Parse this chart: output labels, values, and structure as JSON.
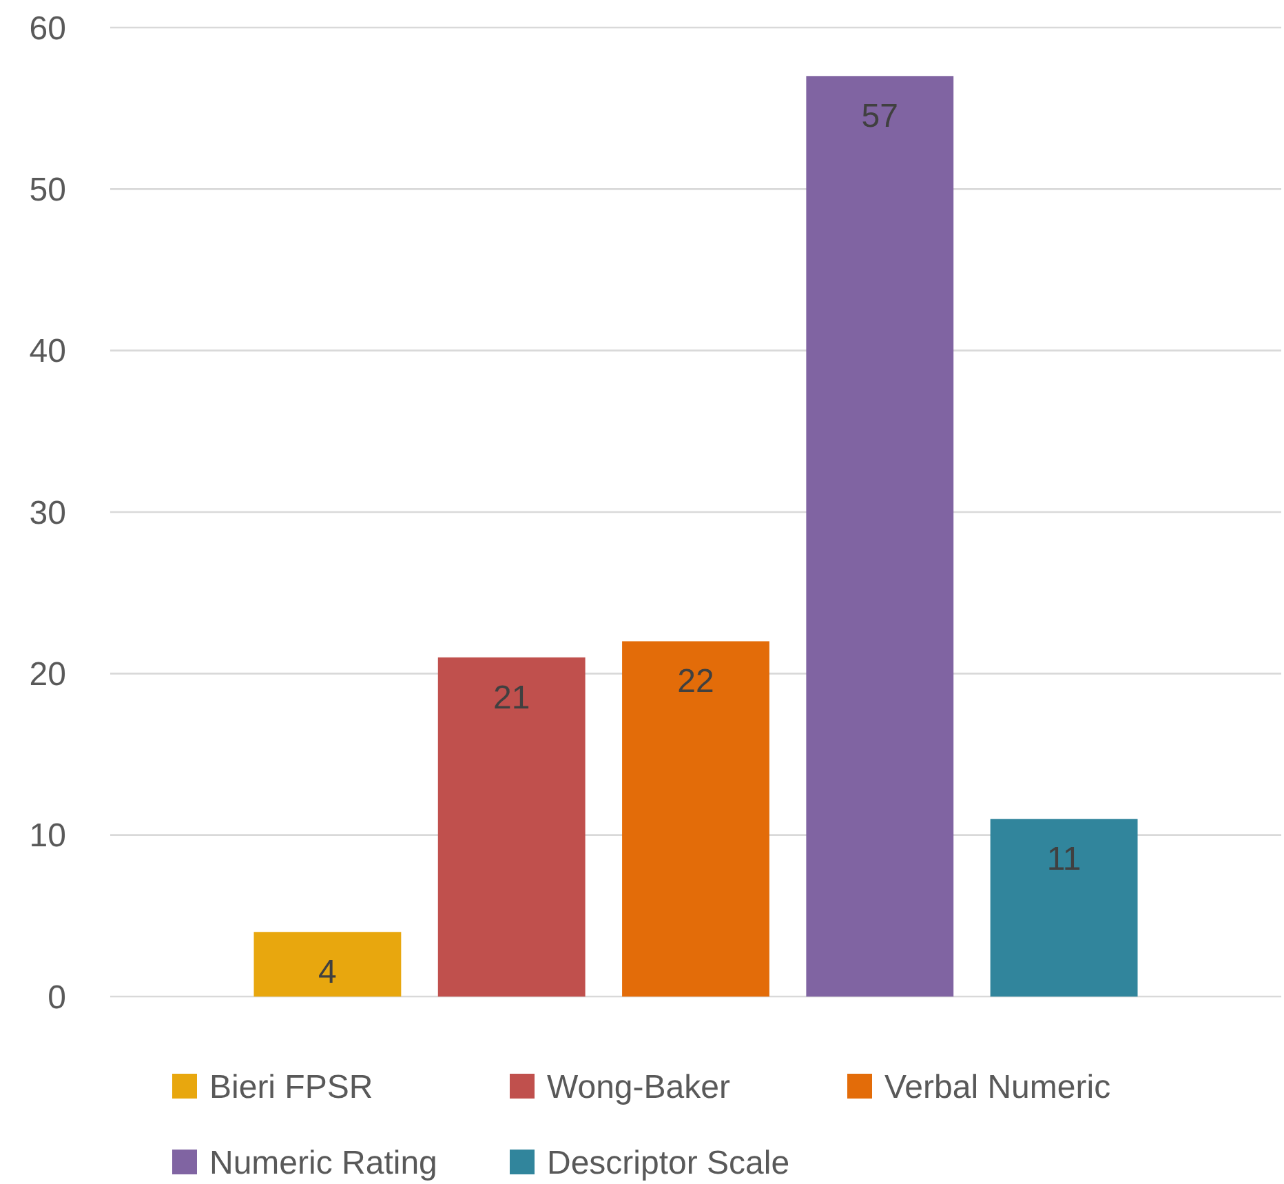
{
  "chart_data": {
    "type": "bar",
    "categories": [
      null
    ],
    "series": [
      {
        "name": "Bieri FPSR",
        "color": "#e8a70e",
        "values": [
          4
        ]
      },
      {
        "name": "Wong-Baker",
        "color": "#c0504d",
        "values": [
          21
        ]
      },
      {
        "name": "Verbal Numeric",
        "color": "#e36c09",
        "values": [
          22
        ]
      },
      {
        "name": "Numeric Rating",
        "color": "#8064a2",
        "values": [
          57
        ]
      },
      {
        "name": "Descriptor Scale",
        "color": "#31859c",
        "values": [
          11
        ]
      }
    ],
    "ylim": [
      0,
      60
    ],
    "yticks": [
      0,
      10,
      20,
      30,
      40,
      50,
      60
    ],
    "grid": "y",
    "legend": "bottom",
    "data_labels": true
  }
}
